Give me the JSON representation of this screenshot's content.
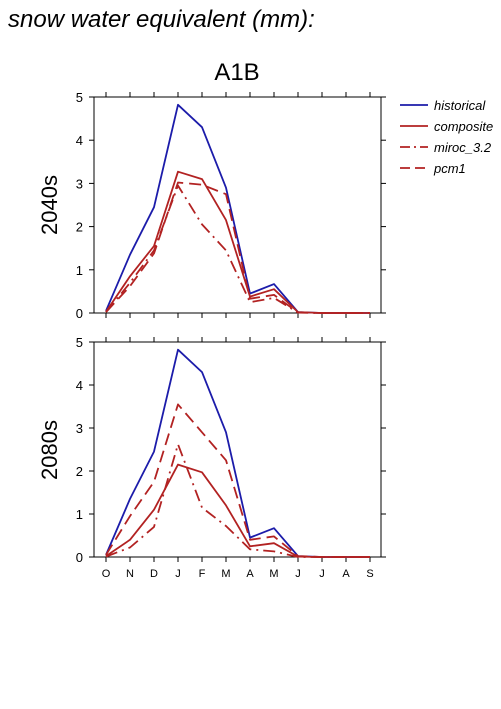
{
  "page_title": "snow water equivalent (mm):",
  "scenario": "A1B",
  "legend": [
    {
      "label": "historical",
      "color": "#1c1caa",
      "dash": "solid"
    },
    {
      "label": "composite",
      "color": "#b22222",
      "dash": "solid"
    },
    {
      "label": "miroc_3.2",
      "color": "#b22222",
      "dash": "dashdot"
    },
    {
      "label": "pcm1",
      "color": "#b22222",
      "dash": "dashed"
    }
  ],
  "chart_data": [
    {
      "type": "line",
      "ylabel": "2040s",
      "categories": [
        "O",
        "N",
        "D",
        "J",
        "F",
        "M",
        "A",
        "M",
        "J",
        "J",
        "A",
        "S"
      ],
      "ylim": [
        0,
        5
      ],
      "yticks": [
        0,
        1,
        2,
        3,
        4,
        5
      ],
      "series": [
        {
          "name": "historical",
          "values": [
            0.05,
            1.35,
            2.45,
            4.82,
            4.3,
            2.9,
            0.45,
            0.67,
            0.02,
            0.0,
            0.0,
            0.0
          ]
        },
        {
          "name": "composite",
          "values": [
            0.03,
            0.85,
            1.55,
            3.27,
            3.1,
            2.15,
            0.38,
            0.55,
            0.02,
            0.0,
            0.0,
            0.0
          ]
        },
        {
          "name": "miroc_3.2",
          "values": [
            0.02,
            0.7,
            1.45,
            2.95,
            2.05,
            1.45,
            0.25,
            0.35,
            0.01,
            0.0,
            0.0,
            0.0
          ]
        },
        {
          "name": "pcm1",
          "values": [
            0.02,
            0.62,
            1.38,
            3.02,
            2.97,
            2.75,
            0.33,
            0.42,
            0.01,
            0.0,
            0.0,
            0.0
          ]
        }
      ]
    },
    {
      "type": "line",
      "ylabel": "2080s",
      "categories": [
        "O",
        "N",
        "D",
        "J",
        "F",
        "M",
        "A",
        "M",
        "J",
        "J",
        "A",
        "S"
      ],
      "ylim": [
        0,
        5
      ],
      "yticks": [
        0,
        1,
        2,
        3,
        4,
        5
      ],
      "series": [
        {
          "name": "historical",
          "values": [
            0.05,
            1.35,
            2.45,
            4.82,
            4.3,
            2.9,
            0.45,
            0.67,
            0.02,
            0.0,
            0.0,
            0.0
          ]
        },
        {
          "name": "composite",
          "values": [
            0.02,
            0.4,
            1.1,
            2.15,
            1.97,
            1.2,
            0.25,
            0.32,
            0.01,
            0.0,
            0.0,
            0.0
          ]
        },
        {
          "name": "miroc_3.2",
          "values": [
            0.01,
            0.22,
            0.7,
            2.62,
            1.15,
            0.72,
            0.18,
            0.13,
            0.0,
            0.0,
            0.0,
            0.0
          ]
        },
        {
          "name": "pcm1",
          "values": [
            0.05,
            0.95,
            1.75,
            3.55,
            2.9,
            2.25,
            0.4,
            0.48,
            0.02,
            0.0,
            0.0,
            0.0
          ]
        }
      ]
    }
  ]
}
